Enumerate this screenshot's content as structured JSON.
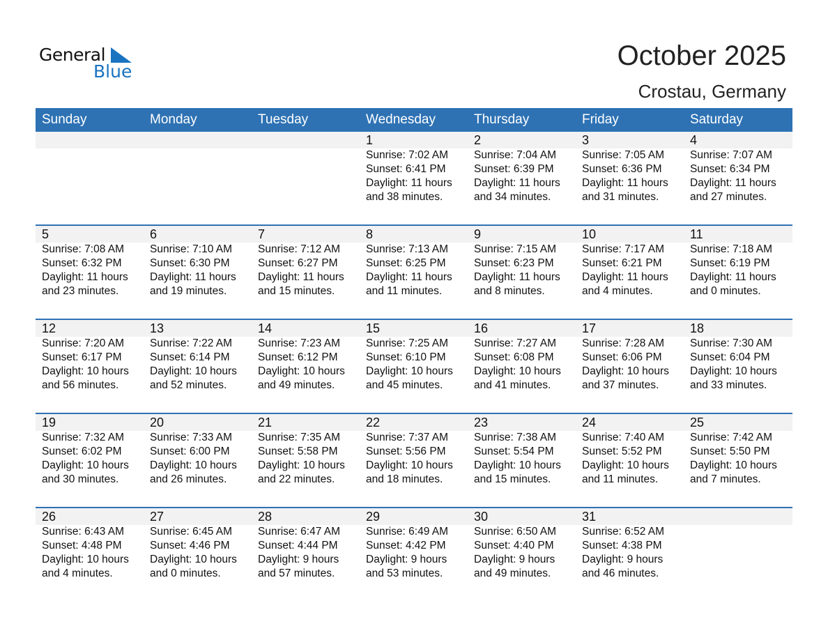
{
  "logo": {
    "word1": "General",
    "word2": "Blue",
    "color": "#1a73c0"
  },
  "title": "October 2025",
  "location": "Crostau, Germany",
  "accent": "#2e72b4",
  "weekdays": [
    "Sunday",
    "Monday",
    "Tuesday",
    "Wednesday",
    "Thursday",
    "Friday",
    "Saturday"
  ],
  "weeks": [
    [
      null,
      null,
      null,
      {
        "day": "1",
        "sunrise": "Sunrise: 7:02 AM",
        "sunset": "Sunset: 6:41 PM",
        "daylight1": "Daylight: 11 hours",
        "daylight2": "and 38 minutes."
      },
      {
        "day": "2",
        "sunrise": "Sunrise: 7:04 AM",
        "sunset": "Sunset: 6:39 PM",
        "daylight1": "Daylight: 11 hours",
        "daylight2": "and 34 minutes."
      },
      {
        "day": "3",
        "sunrise": "Sunrise: 7:05 AM",
        "sunset": "Sunset: 6:36 PM",
        "daylight1": "Daylight: 11 hours",
        "daylight2": "and 31 minutes."
      },
      {
        "day": "4",
        "sunrise": "Sunrise: 7:07 AM",
        "sunset": "Sunset: 6:34 PM",
        "daylight1": "Daylight: 11 hours",
        "daylight2": "and 27 minutes."
      }
    ],
    [
      {
        "day": "5",
        "sunrise": "Sunrise: 7:08 AM",
        "sunset": "Sunset: 6:32 PM",
        "daylight1": "Daylight: 11 hours",
        "daylight2": "and 23 minutes."
      },
      {
        "day": "6",
        "sunrise": "Sunrise: 7:10 AM",
        "sunset": "Sunset: 6:30 PM",
        "daylight1": "Daylight: 11 hours",
        "daylight2": "and 19 minutes."
      },
      {
        "day": "7",
        "sunrise": "Sunrise: 7:12 AM",
        "sunset": "Sunset: 6:27 PM",
        "daylight1": "Daylight: 11 hours",
        "daylight2": "and 15 minutes."
      },
      {
        "day": "8",
        "sunrise": "Sunrise: 7:13 AM",
        "sunset": "Sunset: 6:25 PM",
        "daylight1": "Daylight: 11 hours",
        "daylight2": "and 11 minutes."
      },
      {
        "day": "9",
        "sunrise": "Sunrise: 7:15 AM",
        "sunset": "Sunset: 6:23 PM",
        "daylight1": "Daylight: 11 hours",
        "daylight2": "and 8 minutes."
      },
      {
        "day": "10",
        "sunrise": "Sunrise: 7:17 AM",
        "sunset": "Sunset: 6:21 PM",
        "daylight1": "Daylight: 11 hours",
        "daylight2": "and 4 minutes."
      },
      {
        "day": "11",
        "sunrise": "Sunrise: 7:18 AM",
        "sunset": "Sunset: 6:19 PM",
        "daylight1": "Daylight: 11 hours",
        "daylight2": "and 0 minutes."
      }
    ],
    [
      {
        "day": "12",
        "sunrise": "Sunrise: 7:20 AM",
        "sunset": "Sunset: 6:17 PM",
        "daylight1": "Daylight: 10 hours",
        "daylight2": "and 56 minutes."
      },
      {
        "day": "13",
        "sunrise": "Sunrise: 7:22 AM",
        "sunset": "Sunset: 6:14 PM",
        "daylight1": "Daylight: 10 hours",
        "daylight2": "and 52 minutes."
      },
      {
        "day": "14",
        "sunrise": "Sunrise: 7:23 AM",
        "sunset": "Sunset: 6:12 PM",
        "daylight1": "Daylight: 10 hours",
        "daylight2": "and 49 minutes."
      },
      {
        "day": "15",
        "sunrise": "Sunrise: 7:25 AM",
        "sunset": "Sunset: 6:10 PM",
        "daylight1": "Daylight: 10 hours",
        "daylight2": "and 45 minutes."
      },
      {
        "day": "16",
        "sunrise": "Sunrise: 7:27 AM",
        "sunset": "Sunset: 6:08 PM",
        "daylight1": "Daylight: 10 hours",
        "daylight2": "and 41 minutes."
      },
      {
        "day": "17",
        "sunrise": "Sunrise: 7:28 AM",
        "sunset": "Sunset: 6:06 PM",
        "daylight1": "Daylight: 10 hours",
        "daylight2": "and 37 minutes."
      },
      {
        "day": "18",
        "sunrise": "Sunrise: 7:30 AM",
        "sunset": "Sunset: 6:04 PM",
        "daylight1": "Daylight: 10 hours",
        "daylight2": "and 33 minutes."
      }
    ],
    [
      {
        "day": "19",
        "sunrise": "Sunrise: 7:32 AM",
        "sunset": "Sunset: 6:02 PM",
        "daylight1": "Daylight: 10 hours",
        "daylight2": "and 30 minutes."
      },
      {
        "day": "20",
        "sunrise": "Sunrise: 7:33 AM",
        "sunset": "Sunset: 6:00 PM",
        "daylight1": "Daylight: 10 hours",
        "daylight2": "and 26 minutes."
      },
      {
        "day": "21",
        "sunrise": "Sunrise: 7:35 AM",
        "sunset": "Sunset: 5:58 PM",
        "daylight1": "Daylight: 10 hours",
        "daylight2": "and 22 minutes."
      },
      {
        "day": "22",
        "sunrise": "Sunrise: 7:37 AM",
        "sunset": "Sunset: 5:56 PM",
        "daylight1": "Daylight: 10 hours",
        "daylight2": "and 18 minutes."
      },
      {
        "day": "23",
        "sunrise": "Sunrise: 7:38 AM",
        "sunset": "Sunset: 5:54 PM",
        "daylight1": "Daylight: 10 hours",
        "daylight2": "and 15 minutes."
      },
      {
        "day": "24",
        "sunrise": "Sunrise: 7:40 AM",
        "sunset": "Sunset: 5:52 PM",
        "daylight1": "Daylight: 10 hours",
        "daylight2": "and 11 minutes."
      },
      {
        "day": "25",
        "sunrise": "Sunrise: 7:42 AM",
        "sunset": "Sunset: 5:50 PM",
        "daylight1": "Daylight: 10 hours",
        "daylight2": "and 7 minutes."
      }
    ],
    [
      {
        "day": "26",
        "sunrise": "Sunrise: 6:43 AM",
        "sunset": "Sunset: 4:48 PM",
        "daylight1": "Daylight: 10 hours",
        "daylight2": "and 4 minutes."
      },
      {
        "day": "27",
        "sunrise": "Sunrise: 6:45 AM",
        "sunset": "Sunset: 4:46 PM",
        "daylight1": "Daylight: 10 hours",
        "daylight2": "and 0 minutes."
      },
      {
        "day": "28",
        "sunrise": "Sunrise: 6:47 AM",
        "sunset": "Sunset: 4:44 PM",
        "daylight1": "Daylight: 9 hours",
        "daylight2": "and 57 minutes."
      },
      {
        "day": "29",
        "sunrise": "Sunrise: 6:49 AM",
        "sunset": "Sunset: 4:42 PM",
        "daylight1": "Daylight: 9 hours",
        "daylight2": "and 53 minutes."
      },
      {
        "day": "30",
        "sunrise": "Sunrise: 6:50 AM",
        "sunset": "Sunset: 4:40 PM",
        "daylight1": "Daylight: 9 hours",
        "daylight2": "and 49 minutes."
      },
      {
        "day": "31",
        "sunrise": "Sunrise: 6:52 AM",
        "sunset": "Sunset: 4:38 PM",
        "daylight1": "Daylight: 9 hours",
        "daylight2": "and 46 minutes."
      },
      null
    ]
  ]
}
